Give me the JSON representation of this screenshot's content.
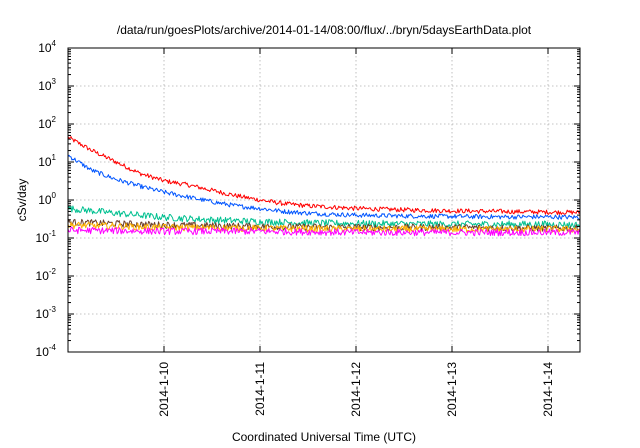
{
  "chart_data": {
    "type": "line",
    "title": "/data/run/goesPlots/archive/2014-01-14/08:00/flux/../bryn/5daysEarthData.plot",
    "xlabel": "Coordinated Universal Time (UTC)",
    "ylabel": "cSv/day",
    "yscale": "log",
    "ylim": [
      0.0001,
      10000
    ],
    "yticks": [
      {
        "base": "10",
        "exp": "-4",
        "value": 0.0001
      },
      {
        "base": "10",
        "exp": "-3",
        "value": 0.001
      },
      {
        "base": "10",
        "exp": "-2",
        "value": 0.01
      },
      {
        "base": "10",
        "exp": "-1",
        "value": 0.1
      },
      {
        "base": "10",
        "exp": "0",
        "value": 1
      },
      {
        "base": "10",
        "exp": "1",
        "value": 10
      },
      {
        "base": "10",
        "exp": "2",
        "value": 100
      },
      {
        "base": "10",
        "exp": "3",
        "value": 1000
      },
      {
        "base": "10",
        "exp": "4",
        "value": 10000
      }
    ],
    "xlim": [
      "2014-01-09 00:00",
      "2014-01-14 08:00"
    ],
    "xticks": [
      {
        "label": "2014-1-10",
        "value": "2014-01-10 00:00"
      },
      {
        "label": "2014-1-11",
        "value": "2014-01-11 00:00"
      },
      {
        "label": "2014-1-12",
        "value": "2014-01-12 00:00"
      },
      {
        "label": "2014-1-13",
        "value": "2014-01-13 00:00"
      },
      {
        "label": "2014-1-14",
        "value": "2014-01-14 00:00"
      }
    ],
    "grid": true,
    "series": [
      {
        "color": "#ff0000",
        "x": [
          "2014-01-09 00:00",
          "2014-01-09 06:00",
          "2014-01-09 12:00",
          "2014-01-09 18:00",
          "2014-01-10 00:00",
          "2014-01-10 06:00",
          "2014-01-10 12:00",
          "2014-01-10 18:00",
          "2014-01-11 00:00",
          "2014-01-11 06:00",
          "2014-01-11 12:00",
          "2014-01-11 18:00",
          "2014-01-12 00:00",
          "2014-01-12 12:00",
          "2014-01-13 00:00",
          "2014-01-13 12:00",
          "2014-01-14 00:00",
          "2014-01-14 08:00"
        ],
        "values": [
          45,
          20,
          10,
          5,
          3.2,
          2.5,
          1.8,
          1.3,
          1.0,
          0.8,
          0.7,
          0.65,
          0.6,
          0.55,
          0.52,
          0.5,
          0.48,
          0.47
        ]
      },
      {
        "color": "#0055ff",
        "x": [
          "2014-01-09 00:00",
          "2014-01-09 06:00",
          "2014-01-09 12:00",
          "2014-01-09 18:00",
          "2014-01-10 00:00",
          "2014-01-10 06:00",
          "2014-01-10 12:00",
          "2014-01-10 18:00",
          "2014-01-11 00:00",
          "2014-01-11 06:00",
          "2014-01-11 12:00",
          "2014-01-11 18:00",
          "2014-01-12 00:00",
          "2014-01-12 12:00",
          "2014-01-13 00:00",
          "2014-01-13 12:00",
          "2014-01-14 00:00",
          "2014-01-14 08:00"
        ],
        "values": [
          15,
          6,
          3.5,
          2.3,
          1.6,
          1.2,
          0.9,
          0.7,
          0.6,
          0.5,
          0.45,
          0.42,
          0.4,
          0.38,
          0.37,
          0.36,
          0.36,
          0.35
        ]
      },
      {
        "color": "#00c090",
        "x": [
          "2014-01-09 00:00",
          "2014-01-09 12:00",
          "2014-01-10 00:00",
          "2014-01-10 12:00",
          "2014-01-11 00:00",
          "2014-01-11 12:00",
          "2014-01-12 00:00",
          "2014-01-13 00:00",
          "2014-01-14 00:00",
          "2014-01-14 08:00"
        ],
        "values": [
          0.6,
          0.45,
          0.35,
          0.3,
          0.27,
          0.25,
          0.24,
          0.23,
          0.23,
          0.22
        ]
      },
      {
        "color": "#6a3d2a",
        "x": [
          "2014-01-09 00:00",
          "2014-01-10 00:00",
          "2014-01-11 00:00",
          "2014-01-12 00:00",
          "2014-01-13 00:00",
          "2014-01-14 00:00",
          "2014-01-14 08:00"
        ],
        "values": [
          0.26,
          0.22,
          0.2,
          0.19,
          0.19,
          0.18,
          0.18
        ]
      },
      {
        "color": "#ffb000",
        "x": [
          "2014-01-09 00:00",
          "2014-01-10 00:00",
          "2014-01-11 00:00",
          "2014-01-12 00:00",
          "2014-01-13 00:00",
          "2014-01-14 00:00",
          "2014-01-14 08:00"
        ],
        "values": [
          0.22,
          0.19,
          0.18,
          0.17,
          0.17,
          0.17,
          0.17
        ]
      },
      {
        "color": "#ff00ff",
        "x": [
          "2014-01-09 00:00",
          "2014-01-10 00:00",
          "2014-01-11 00:00",
          "2014-01-12 00:00",
          "2014-01-13 00:00",
          "2014-01-14 00:00",
          "2014-01-14 08:00"
        ],
        "values": [
          0.16,
          0.15,
          0.15,
          0.14,
          0.14,
          0.14,
          0.14
        ]
      }
    ]
  }
}
